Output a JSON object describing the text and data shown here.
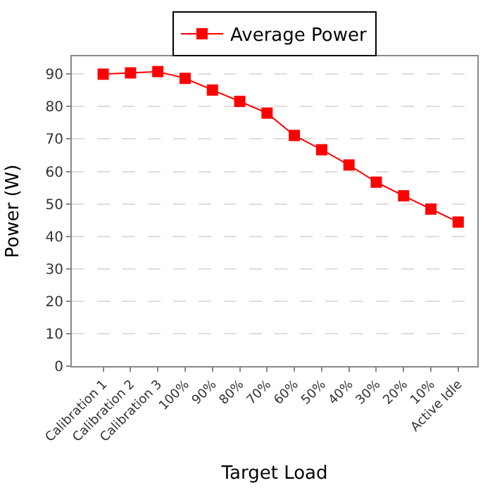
{
  "chart_data": {
    "type": "line",
    "xlabel": "Target Load",
    "ylabel": "Power (W)",
    "categories": [
      "Calibration 1",
      "Calibration 2",
      "Calibration 3",
      "100%",
      "90%",
      "80%",
      "70%",
      "60%",
      "50%",
      "40%",
      "30%",
      "20%",
      "10%",
      "Active Idle"
    ],
    "series": [
      {
        "name": "Average Power",
        "color": "#ff0000",
        "values": [
          90.0,
          90.4,
          90.8,
          88.7,
          85.1,
          81.6,
          78.0,
          71.1,
          66.7,
          62.0,
          56.7,
          52.5,
          48.4,
          44.4
        ]
      }
    ],
    "ylim": [
      0,
      95.5
    ],
    "yticks": [
      0,
      10,
      20,
      30,
      40,
      50,
      60,
      70,
      80,
      90
    ],
    "grid": "y",
    "legend": "top",
    "marker": "square",
    "line_style": "solid"
  }
}
